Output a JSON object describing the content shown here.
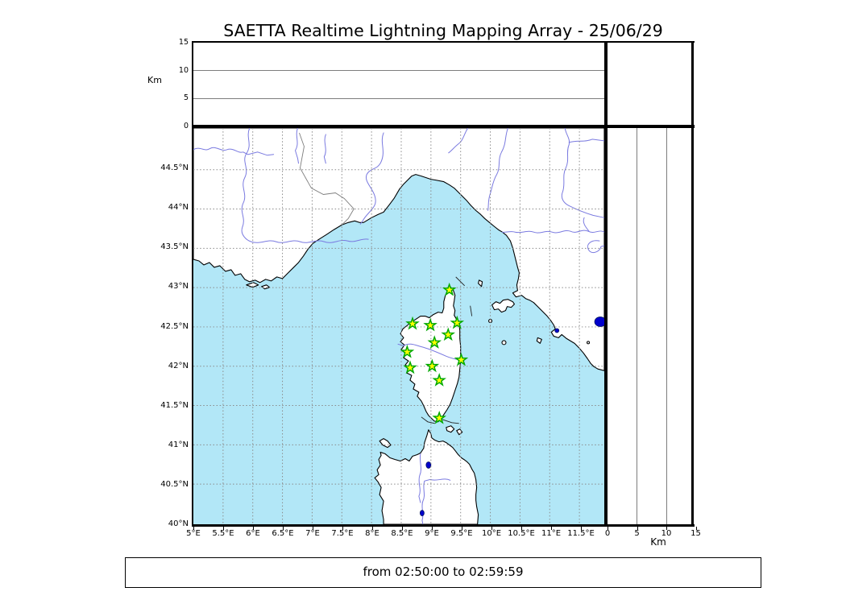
{
  "title": "SAETTA Realtime Lightning Mapping Array - 25/06/29",
  "status": {
    "text": "from 02:50:00 to 02:59:59"
  },
  "altitude_axis": {
    "unit_label": "Km",
    "range_km": [
      0,
      15
    ],
    "ticks": [
      {
        "v": 0,
        "label": "0"
      },
      {
        "v": 5,
        "label": "5"
      },
      {
        "v": 10,
        "label": "10"
      },
      {
        "v": 15,
        "label": "15"
      }
    ]
  },
  "right_altitude_axis": {
    "unit_label": "Km",
    "range_km": [
      0,
      15
    ],
    "ticks": [
      {
        "v": 0,
        "label": "0"
      },
      {
        "v": 5,
        "label": "5"
      },
      {
        "v": 10,
        "label": "10"
      },
      {
        "v": 15,
        "label": "15"
      }
    ]
  },
  "map": {
    "lon_range_deg_e": [
      5,
      11.9
    ],
    "lat_range_deg_n": [
      40,
      45.03
    ],
    "lon_ticks": [
      {
        "v": 5,
        "label": "5°E"
      },
      {
        "v": 5.5,
        "label": "5.5°E"
      },
      {
        "v": 6,
        "label": "6°E"
      },
      {
        "v": 6.5,
        "label": "6.5°E"
      },
      {
        "v": 7,
        "label": "7°E"
      },
      {
        "v": 7.5,
        "label": "7.5°E"
      },
      {
        "v": 8,
        "label": "8°E"
      },
      {
        "v": 8.5,
        "label": "8.5°E"
      },
      {
        "v": 9,
        "label": "9°E"
      },
      {
        "v": 9.5,
        "label": "9.5°E"
      },
      {
        "v": 10,
        "label": "10°E"
      },
      {
        "v": 10.5,
        "label": "10.5°E"
      },
      {
        "v": 11,
        "label": "11°E"
      },
      {
        "v": 11.5,
        "label": "11.5°E"
      }
    ],
    "lat_ticks": [
      {
        "v": 40,
        "label": "40°N"
      },
      {
        "v": 40.5,
        "label": "40.5°N"
      },
      {
        "v": 41,
        "label": "41°N"
      },
      {
        "v": 41.5,
        "label": "41.5°N"
      },
      {
        "v": 42,
        "label": "42°N"
      },
      {
        "v": 42.5,
        "label": "42.5°N"
      },
      {
        "v": 43,
        "label": "43°N"
      },
      {
        "v": 43.5,
        "label": "43.5°N"
      },
      {
        "v": 44,
        "label": "44°N"
      },
      {
        "v": 44.5,
        "label": "44.5°N"
      }
    ],
    "stations_lon_lat": [
      [
        9.31,
        42.97
      ],
      [
        8.69,
        42.54
      ],
      [
        8.99,
        42.52
      ],
      [
        9.44,
        42.55
      ],
      [
        9.29,
        42.4
      ],
      [
        9.06,
        42.3
      ],
      [
        8.6,
        42.18
      ],
      [
        9.51,
        42.08
      ],
      [
        9.02,
        42.0
      ],
      [
        8.65,
        41.98
      ],
      [
        9.14,
        41.82
      ],
      [
        9.14,
        41.34
      ]
    ]
  },
  "colors": {
    "sea": "#b2e7f7",
    "river": "#7a7ae0",
    "star_fill": "#ffff00",
    "star_stroke": "#00a800",
    "lake": "#0000cc",
    "grid": "#8a8a8a",
    "border_line": "#7d7d7d"
  }
}
